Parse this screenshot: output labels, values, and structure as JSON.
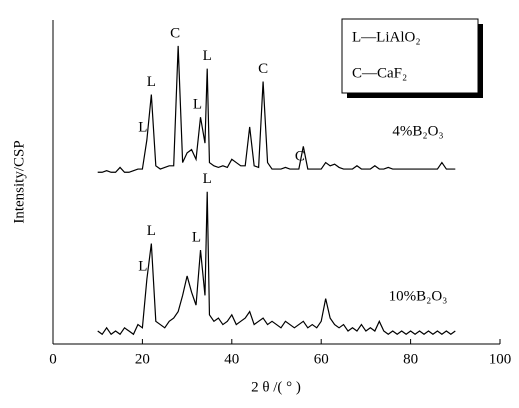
{
  "chart_data": {
    "type": "line",
    "xlabel": "2 θ /( ° )",
    "ylabel": "Intensity/CSP",
    "x": [
      10,
      11,
      12,
      13,
      14,
      15,
      16,
      17,
      18,
      19,
      20,
      21,
      22,
      23,
      24,
      25,
      26,
      27,
      28,
      29,
      30,
      31,
      32,
      33,
      34,
      34.5,
      35,
      36,
      37,
      38,
      39,
      40,
      41,
      42,
      43,
      44,
      45,
      46,
      47,
      48,
      49,
      50,
      51,
      52,
      53,
      54,
      55,
      56,
      57,
      58,
      59,
      60,
      61,
      62,
      63,
      64,
      65,
      66,
      67,
      68,
      69,
      70,
      71,
      72,
      73,
      74,
      75,
      76,
      77,
      78,
      79,
      80,
      81,
      82,
      83,
      84,
      85,
      86,
      87,
      88,
      89,
      90
    ],
    "xlim": [
      0,
      100
    ],
    "xticks": [
      0,
      20,
      40,
      60,
      80,
      100
    ],
    "ylim": [
      0,
      100
    ],
    "series": [
      {
        "name": "4%B₂O₃",
        "color": "#000000",
        "values": [
          53,
          53,
          53.5,
          53,
          53,
          54.5,
          53,
          53,
          53.5,
          54,
          54,
          63,
          77,
          55,
          54,
          54.5,
          55,
          55,
          92,
          56,
          59,
          60,
          57,
          70,
          62,
          85,
          56,
          55,
          54.5,
          55,
          54.5,
          57,
          56,
          55,
          55,
          67,
          55,
          54.5,
          81,
          56,
          54,
          54,
          54,
          54.5,
          54,
          54,
          54,
          61,
          54,
          54,
          54,
          54,
          56,
          55,
          55.5,
          54.5,
          54,
          54,
          54,
          55,
          54,
          54,
          54,
          55,
          54,
          54,
          54.5,
          54,
          54,
          54,
          54,
          54,
          54,
          54,
          54,
          54,
          54,
          54,
          56,
          54,
          54,
          54
        ]
      },
      {
        "name": "10%B₂O₃",
        "color": "#000000",
        "values": [
          4,
          3,
          5,
          3,
          4,
          3,
          5,
          4,
          3,
          6,
          5,
          20,
          31,
          7,
          6,
          5,
          7,
          8,
          10,
          15,
          21,
          16,
          12,
          29,
          15,
          47,
          9,
          7,
          8,
          6,
          7,
          9,
          6,
          7,
          8,
          10,
          6,
          7,
          8,
          6,
          7,
          6,
          5,
          7,
          6,
          5,
          6,
          7,
          5,
          6,
          5,
          7,
          14,
          8,
          6,
          5,
          6,
          4,
          5,
          4,
          6,
          4,
          5,
          4,
          7,
          4,
          3,
          4,
          3,
          4,
          3,
          4,
          3,
          4,
          3,
          4,
          3,
          4,
          3,
          4,
          3,
          4
        ]
      }
    ],
    "annotations": [
      "L",
      "L",
      "C",
      "L",
      "L",
      "C",
      "C",
      "L",
      "L",
      "L",
      "L"
    ],
    "legend_entries": [
      "L—LiAlO₂",
      "C—CaF₂"
    ]
  }
}
